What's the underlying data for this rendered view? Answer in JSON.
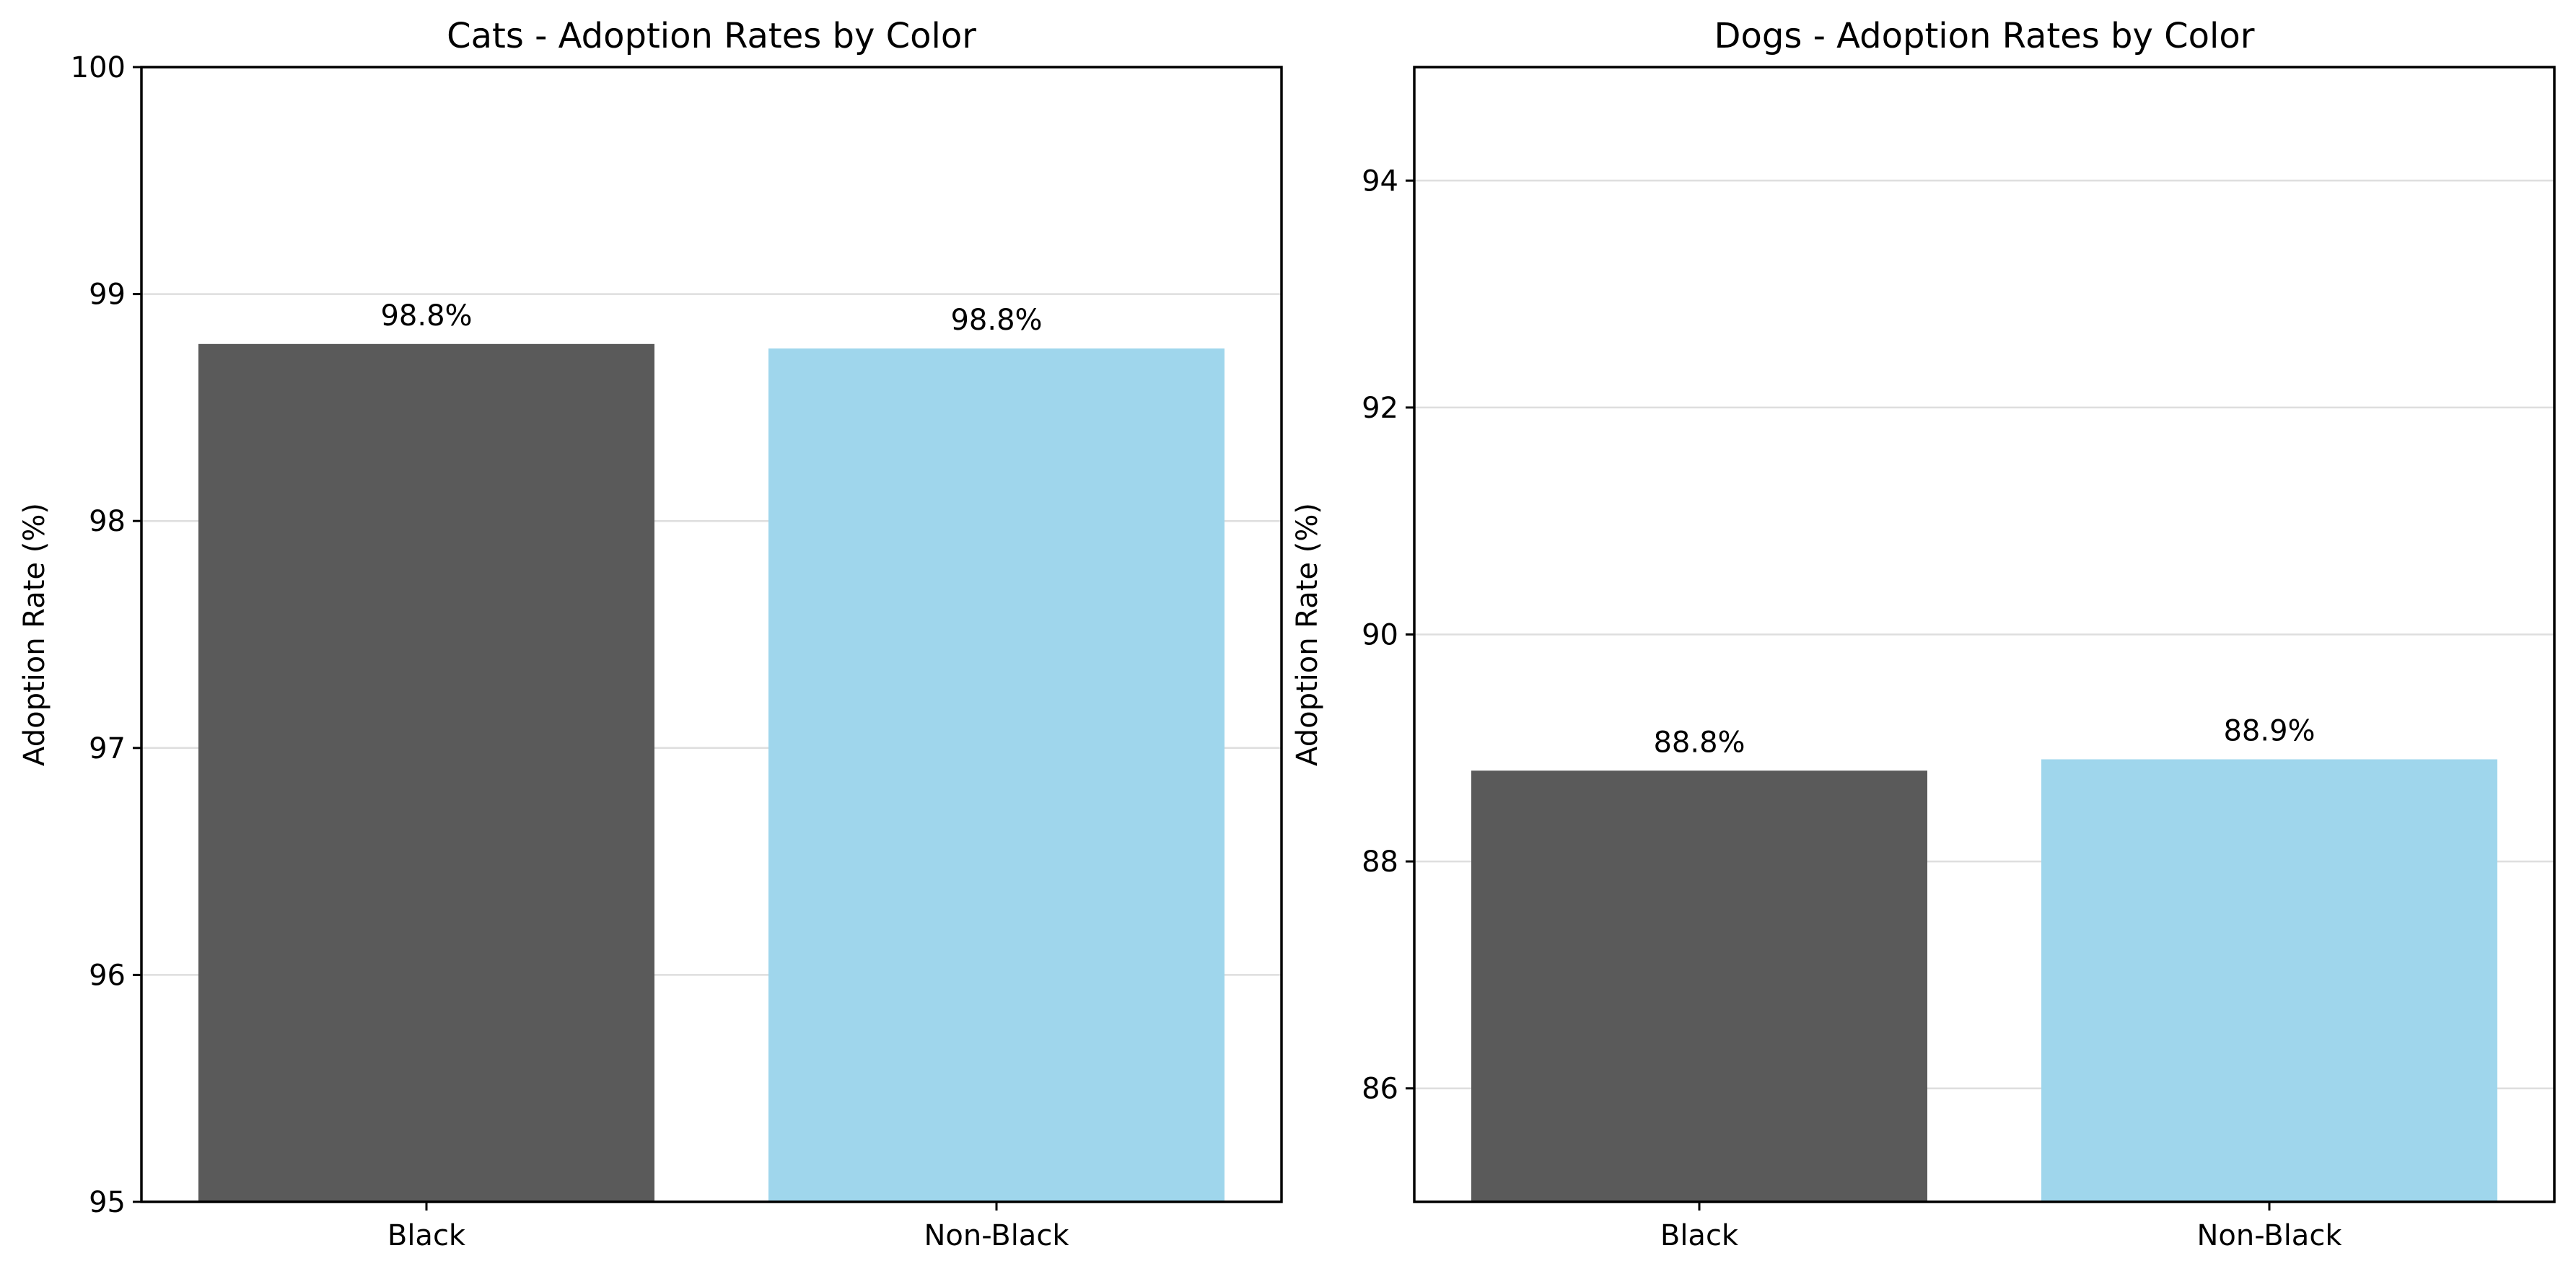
{
  "chart_data": [
    {
      "type": "bar",
      "title": "Cats - Adoption Rates by Color",
      "ylabel": "Adoption Rate (%)",
      "categories": [
        "Black",
        "Non-Black"
      ],
      "values": [
        98.78,
        98.76
      ],
      "data_labels": [
        "98.8%",
        "98.8%"
      ],
      "colors": [
        "#5a5a5a",
        "#9fd6ec"
      ],
      "ylim": [
        95,
        100
      ],
      "yticks": [
        95,
        96,
        97,
        98,
        99,
        100
      ],
      "grid": "y"
    },
    {
      "type": "bar",
      "title": "Dogs - Adoption Rates by Color",
      "ylabel": "Adoption Rate (%)",
      "categories": [
        "Black",
        "Non-Black"
      ],
      "values": [
        88.8,
        88.9
      ],
      "data_labels": [
        "88.8%",
        "88.9%"
      ],
      "colors": [
        "#5a5a5a",
        "#9fd6ec"
      ],
      "ylim": [
        85,
        95
      ],
      "yticks": [
        86,
        88,
        90,
        92,
        94
      ],
      "grid": "y"
    }
  ]
}
